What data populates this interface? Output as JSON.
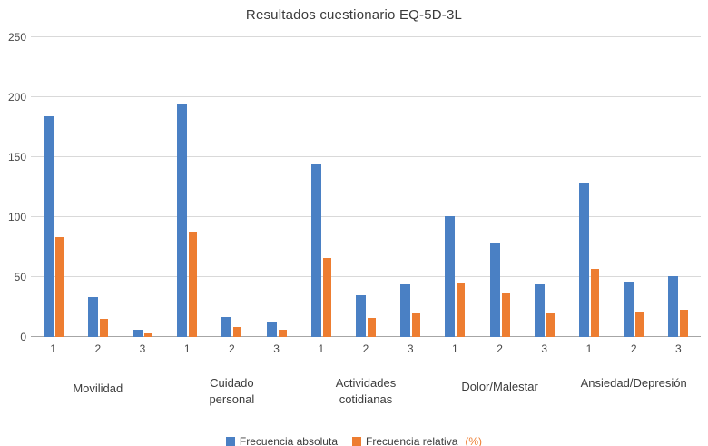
{
  "chart_data": {
    "type": "bar",
    "title": "Resultados cuestionario EQ-5D-3L",
    "xlabel": "",
    "ylabel": "",
    "ylim": [
      0,
      250
    ],
    "yticks": [
      0,
      50,
      100,
      150,
      200,
      250
    ],
    "grid": true,
    "legend_position": "bottom",
    "series": [
      {
        "name": "Frecuencia absoluta",
        "color": "#4a80c4"
      },
      {
        "name": "Frecuencia relativa (%)",
        "color": "#ed7d31"
      }
    ],
    "groups": [
      {
        "category": "Movilidad",
        "levels": [
          "1",
          "2",
          "3"
        ],
        "frecuencia_absoluta": [
          184,
          33,
          6
        ],
        "frecuencia_relativa": [
          83,
          15,
          3
        ]
      },
      {
        "category": "Cuidado personal",
        "levels": [
          "1",
          "2",
          "3"
        ],
        "frecuencia_absoluta": [
          195,
          17,
          12
        ],
        "frecuencia_relativa": [
          88,
          8,
          6
        ]
      },
      {
        "category": "Actividades cotidianas",
        "levels": [
          "1",
          "2",
          "3"
        ],
        "frecuencia_absoluta": [
          145,
          35,
          44
        ],
        "frecuencia_relativa": [
          66,
          16,
          20
        ]
      },
      {
        "category": "Dolor/Malestar",
        "levels": [
          "1",
          "2",
          "3"
        ],
        "frecuencia_absoluta": [
          101,
          78,
          44
        ],
        "frecuencia_relativa": [
          45,
          36,
          20
        ]
      },
      {
        "category": "Ansiedad/Depresión",
        "levels": [
          "1",
          "2",
          "3"
        ],
        "frecuencia_absoluta": [
          128,
          46,
          51
        ],
        "frecuencia_relativa": [
          57,
          21,
          23
        ]
      }
    ]
  },
  "legend": {
    "absoluta_label": "Frecuencia absoluta",
    "relativa_label": "Frecuencia relativa",
    "relativa_pct": "(%)"
  }
}
